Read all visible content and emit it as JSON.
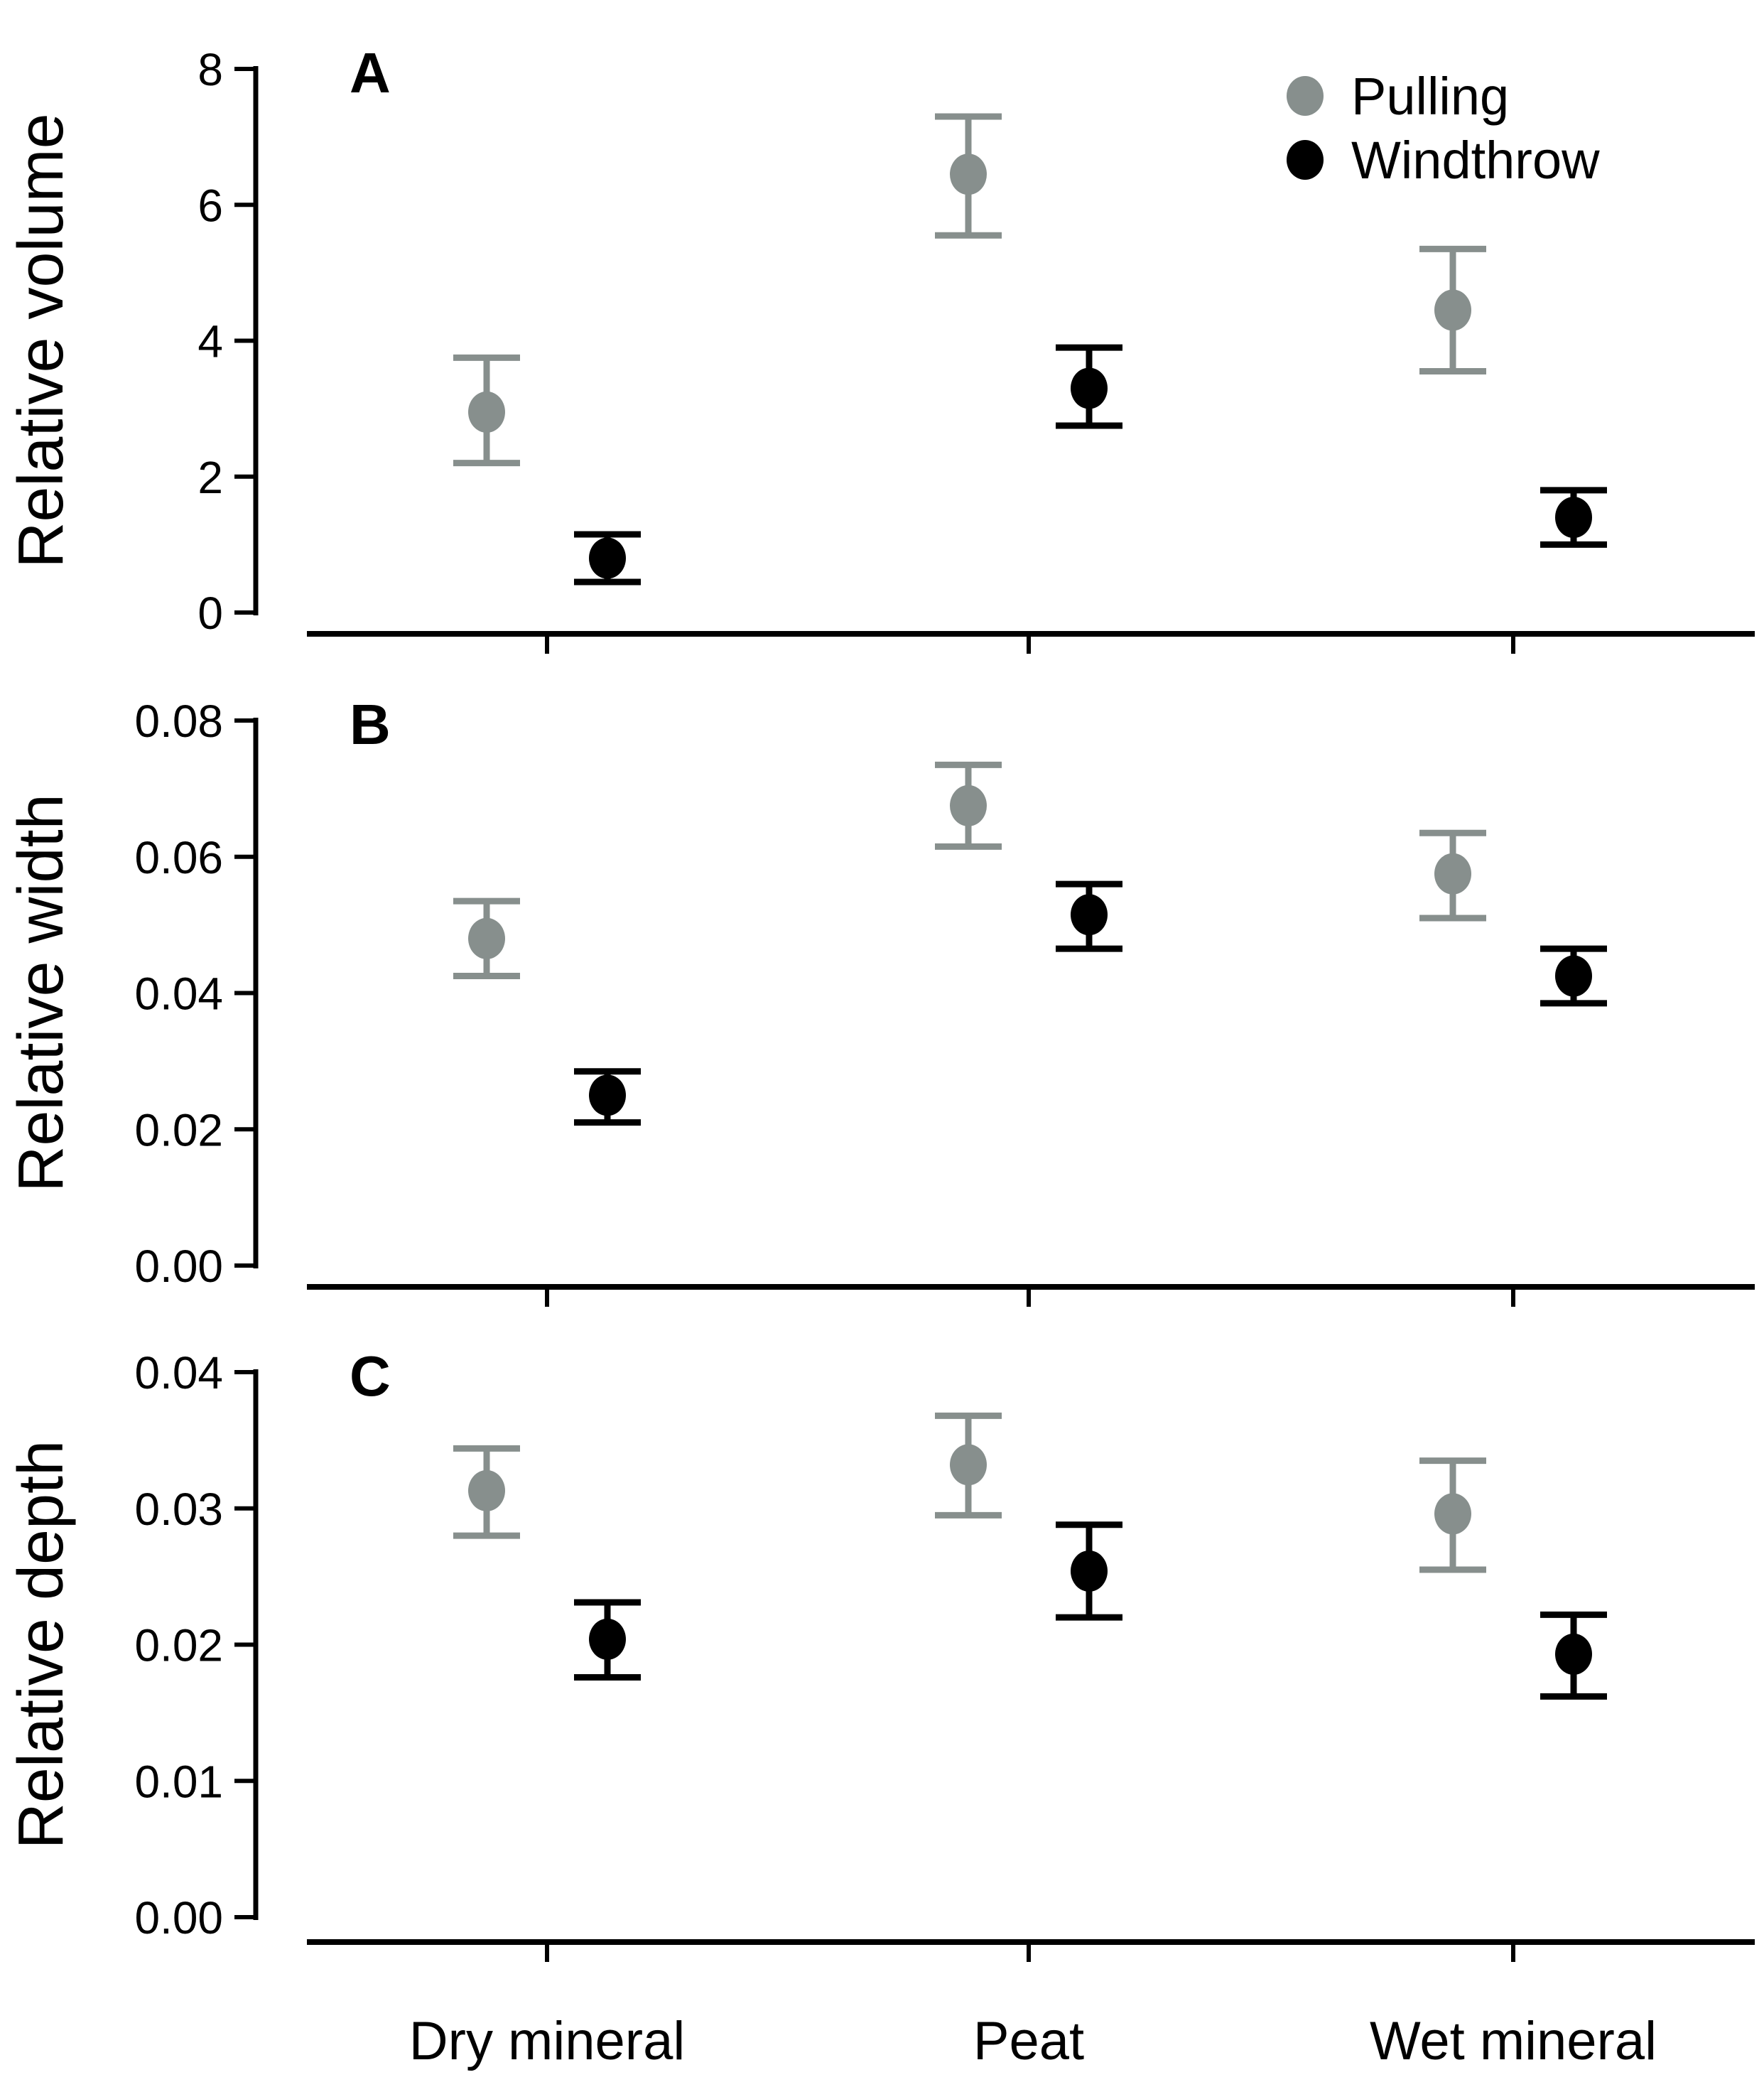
{
  "figure": {
    "background": "#ffffff",
    "axis_color": "#000000"
  },
  "categories": [
    "Dry mineral",
    "Peat",
    "Wet mineral"
  ],
  "legend": {
    "position": "top-right-panel-A",
    "entries": [
      {
        "label": "Pulling",
        "color": "#878f8d"
      },
      {
        "label": "Windthrow",
        "color": "#000000"
      }
    ]
  },
  "chart_data": [
    {
      "type": "scatter",
      "panel_label": "A",
      "ylabel": "Relative volume",
      "xlabel": "",
      "ylim": [
        0,
        8
      ],
      "yticks": [
        0,
        2,
        4,
        6,
        8
      ],
      "ytick_labels": [
        "0",
        "2",
        "4",
        "6",
        "8"
      ],
      "grid": false,
      "categories": [
        "Dry mineral",
        "Peat",
        "Wet mineral"
      ],
      "series": [
        {
          "name": "Pulling",
          "color": "#878f8d",
          "means": [
            2.95,
            6.45,
            4.45
          ],
          "ci_low": [
            2.2,
            5.55,
            3.55
          ],
          "ci_high": [
            3.75,
            7.3,
            5.35
          ]
        },
        {
          "name": "Windthrow",
          "color": "#000000",
          "means": [
            0.8,
            3.3,
            1.4
          ],
          "ci_low": [
            0.45,
            2.75,
            1.0
          ],
          "ci_high": [
            1.15,
            3.9,
            1.8
          ]
        }
      ]
    },
    {
      "type": "scatter",
      "panel_label": "B",
      "ylabel": "Relative width",
      "xlabel": "",
      "ylim": [
        0,
        0.08
      ],
      "yticks": [
        0,
        0.02,
        0.04,
        0.06,
        0.08
      ],
      "ytick_labels": [
        "0.00",
        "0.02",
        "0.04",
        "0.06",
        "0.08"
      ],
      "grid": false,
      "categories": [
        "Dry mineral",
        "Peat",
        "Wet mineral"
      ],
      "series": [
        {
          "name": "Pulling",
          "color": "#878f8d",
          "means": [
            0.048,
            0.0675,
            0.0575
          ],
          "ci_low": [
            0.0425,
            0.0615,
            0.051
          ],
          "ci_high": [
            0.0535,
            0.0735,
            0.0635
          ]
        },
        {
          "name": "Windthrow",
          "color": "#000000",
          "means": [
            0.025,
            0.0515,
            0.0425
          ],
          "ci_low": [
            0.021,
            0.0465,
            0.0385
          ],
          "ci_high": [
            0.0285,
            0.056,
            0.0465
          ]
        }
      ]
    },
    {
      "type": "scatter",
      "panel_label": "C",
      "ylabel": "Relative depth",
      "xlabel": "",
      "ylim": [
        0,
        0.04
      ],
      "yticks": [
        0,
        0.01,
        0.02,
        0.03,
        0.04
      ],
      "ytick_labels": [
        "0.00",
        "0.01",
        "0.02",
        "0.03",
        "0.04"
      ],
      "grid": false,
      "categories": [
        "Dry mineral",
        "Peat",
        "Wet mineral"
      ],
      "series": [
        {
          "name": "Pulling",
          "color": "#878f8d",
          "means": [
            0.0313,
            0.0332,
            0.0296
          ],
          "ci_low": [
            0.028,
            0.0295,
            0.0255
          ],
          "ci_high": [
            0.0344,
            0.0368,
            0.0335
          ]
        },
        {
          "name": "Windthrow",
          "color": "#000000",
          "means": [
            0.0204,
            0.0254,
            0.0193
          ],
          "ci_low": [
            0.0176,
            0.022,
            0.0162
          ],
          "ci_high": [
            0.0231,
            0.0288,
            0.0222
          ]
        }
      ]
    }
  ]
}
